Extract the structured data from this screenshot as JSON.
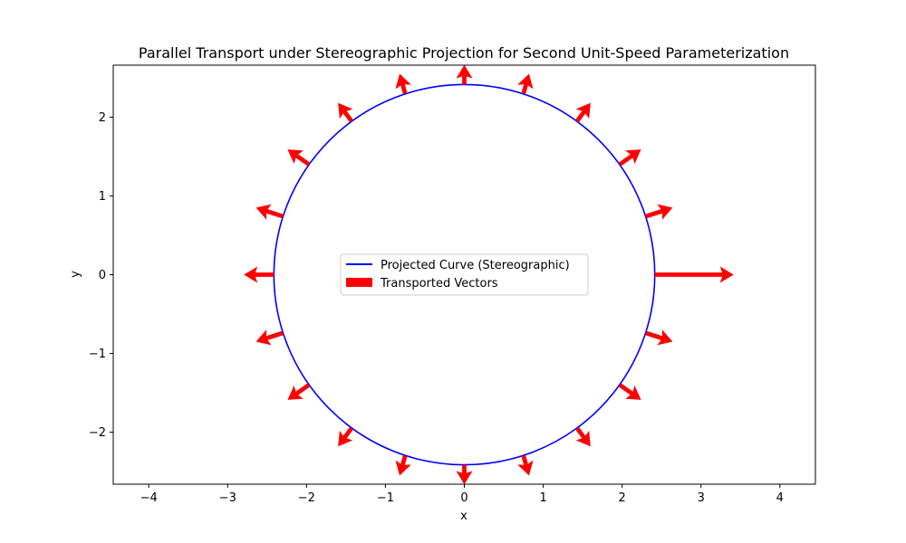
{
  "chart_data": {
    "type": "line",
    "title": "Parallel Transport under Stereographic Projection for Second Unit-Speed Parameterization",
    "xlabel": "x",
    "ylabel": "y",
    "xlim": [
      -4.45,
      4.45
    ],
    "ylim": [
      -2.66,
      2.66
    ],
    "xticks": [
      -4,
      -3,
      -2,
      -1,
      0,
      1,
      2,
      3,
      4
    ],
    "yticks": [
      -2,
      -1,
      0,
      1,
      2
    ],
    "xtick_labels": [
      "−4",
      "−3",
      "−2",
      "−1",
      "0",
      "1",
      "2",
      "3",
      "4"
    ],
    "ytick_labels": [
      "−2",
      "−1",
      "0",
      "1",
      "2"
    ],
    "grid": false,
    "legend_position": "center",
    "curve": {
      "name": "Projected Curve (Stereographic)",
      "shape": "circle",
      "center": [
        0,
        0
      ],
      "radius": 2.414,
      "color": "#0000ff"
    },
    "vectors": {
      "name": "Transported Vectors",
      "color": "#ff0000",
      "points": [
        {
          "x": 2.414,
          "y": 0.0,
          "u": 1.0,
          "v": 0.0
        },
        {
          "x": 2.3,
          "y": 0.74,
          "u": 0.34,
          "v": 0.11
        },
        {
          "x": 1.97,
          "y": 1.4,
          "u": 0.27,
          "v": 0.19
        },
        {
          "x": 1.43,
          "y": 1.95,
          "u": 0.17,
          "v": 0.23
        },
        {
          "x": 0.75,
          "y": 2.3,
          "u": 0.07,
          "v": 0.25
        },
        {
          "x": 0.0,
          "y": 2.414,
          "u": 0.0,
          "v": 0.25
        },
        {
          "x": -0.75,
          "y": 2.3,
          "u": -0.07,
          "v": 0.25
        },
        {
          "x": -1.43,
          "y": 1.95,
          "u": -0.17,
          "v": 0.23
        },
        {
          "x": -1.97,
          "y": 1.4,
          "u": -0.27,
          "v": 0.19
        },
        {
          "x": -2.3,
          "y": 0.74,
          "u": -0.34,
          "v": 0.11
        },
        {
          "x": -2.414,
          "y": 0.0,
          "u": -0.38,
          "v": 0.0
        },
        {
          "x": -2.3,
          "y": -0.74,
          "u": -0.34,
          "v": -0.11
        },
        {
          "x": -1.97,
          "y": -1.4,
          "u": -0.27,
          "v": -0.19
        },
        {
          "x": -1.43,
          "y": -1.95,
          "u": -0.17,
          "v": -0.23
        },
        {
          "x": -0.75,
          "y": -2.3,
          "u": -0.07,
          "v": -0.25
        },
        {
          "x": 0.0,
          "y": -2.414,
          "u": 0.0,
          "v": -0.25
        },
        {
          "x": 0.75,
          "y": -2.3,
          "u": 0.07,
          "v": -0.25
        },
        {
          "x": 1.43,
          "y": -1.95,
          "u": 0.17,
          "v": -0.23
        },
        {
          "x": 1.97,
          "y": -1.4,
          "u": 0.27,
          "v": -0.19
        },
        {
          "x": 2.3,
          "y": -0.74,
          "u": 0.34,
          "v": -0.11
        }
      ]
    },
    "legend": [
      {
        "label": "Projected Curve (Stereographic)",
        "kind": "line",
        "color": "#0000ff"
      },
      {
        "label": "Transported Vectors",
        "kind": "patch",
        "color": "#ff0000"
      }
    ]
  }
}
